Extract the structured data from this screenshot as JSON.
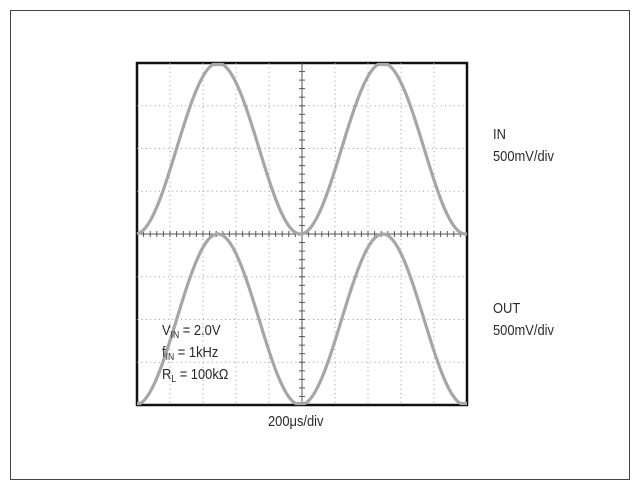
{
  "chart_data": {
    "type": "line",
    "title": "",
    "xlabel": "200μs/div",
    "grid": true,
    "divisions": {
      "x": 10,
      "y": 8
    },
    "series": [
      {
        "name": "IN",
        "scale": "500mV/div",
        "waveform": "sine",
        "frequency_hz": 1000,
        "amplitude_div": 2,
        "center_div": 2,
        "phase_at_start_div": -0.05,
        "color": "#a6a6a6"
      },
      {
        "name": "OUT",
        "scale": "500mV/div",
        "waveform": "sine",
        "frequency_hz": 1000,
        "amplitude_div": 2,
        "center_div": -2,
        "phase_at_start_div": -0.05,
        "color": "#a6a6a6"
      }
    ],
    "labels": {
      "in_name": "IN",
      "in_scale": "500mV/div",
      "out_name": "OUT",
      "out_scale": "500mV/div",
      "time_scale": "200μs/div"
    },
    "conditions": {
      "vin": {
        "sym": "V",
        "sub": "IN",
        "rest": " = 2.0V"
      },
      "fin": {
        "sym": "f",
        "sub": "IN",
        "rest": " = 1kHz"
      },
      "rl": {
        "sym": "R",
        "sub": "L",
        "rest": " = 100kΩ"
      }
    }
  }
}
